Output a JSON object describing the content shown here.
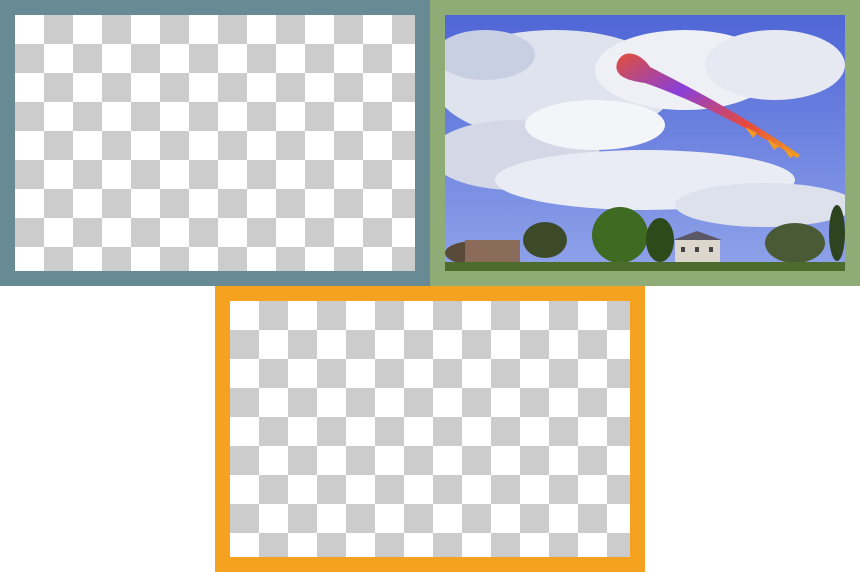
{
  "frames": [
    {
      "id": "top-left",
      "border_color": "#688a94",
      "content": "transparency-checkerboard"
    },
    {
      "id": "top-right",
      "border_color": "#8fac77",
      "content": "photo-kite-in-sky"
    },
    {
      "id": "bottom",
      "border_color": "#f4a21f",
      "content": "transparency-checkerboard"
    }
  ],
  "colors": {
    "checker_light": "#ffffff",
    "checker_dark": "#cccccc",
    "sky": "#5a6fd8",
    "grass": "#4d6b2a"
  }
}
